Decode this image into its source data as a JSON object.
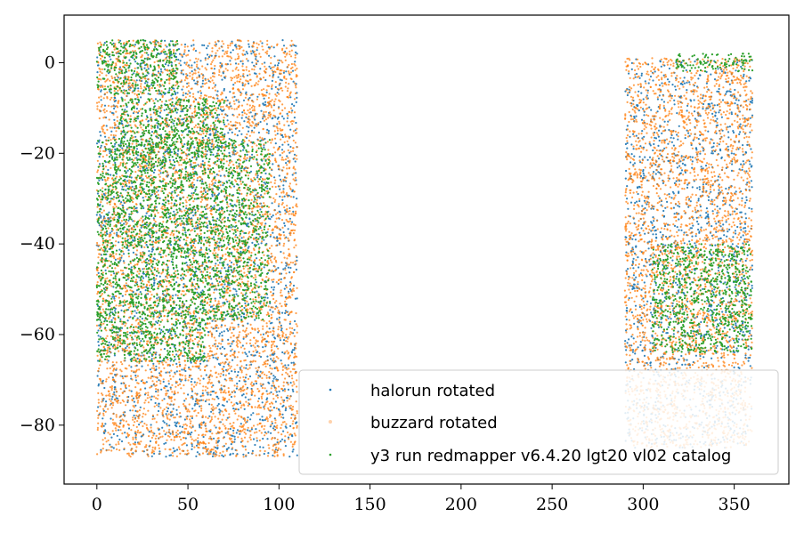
{
  "chart_data": {
    "type": "scatter",
    "title": "",
    "xlabel": "",
    "ylabel": "",
    "xlim": [
      -18,
      380
    ],
    "ylim": [
      -93,
      10.5
    ],
    "grid": false,
    "legend_position": "bottom-right",
    "x_ticks": [
      0,
      50,
      100,
      150,
      200,
      250,
      300,
      350
    ],
    "y_ticks": [
      0,
      -20,
      -40,
      -60,
      -80
    ],
    "x_tick_labels": [
      "0",
      "50",
      "100",
      "150",
      "200",
      "250",
      "300",
      "350"
    ],
    "y_tick_labels": [
      "0",
      "−20",
      "−40",
      "−60",
      "−80"
    ],
    "series": [
      {
        "name": "halorun rotated",
        "color": "#1f77b4",
        "regions": [
          {
            "x": [
              0,
              110
            ],
            "y": [
              -87,
              5
            ]
          },
          {
            "x": [
              290,
              360
            ],
            "y": [
              -85,
              1
            ]
          }
        ]
      },
      {
        "name": "buzzard rotated",
        "color": "#ff7f0e",
        "regions": [
          {
            "x": [
              0,
              110
            ],
            "y": [
              -87,
              5
            ]
          },
          {
            "x": [
              290,
              360
            ],
            "y": [
              -85,
              1
            ]
          }
        ]
      },
      {
        "name": "y3 run redmapper v6.4.20 lgt20 vl02 catalog",
        "color": "#2ca02c",
        "regions": [
          {
            "x": [
              0,
              45
            ],
            "y": [
              -7,
              5
            ]
          },
          {
            "x": [
              0,
              95
            ],
            "y": [
              -57,
              -17
            ]
          },
          {
            "x": [
              12,
              70
            ],
            "y": [
              -20,
              -8
            ]
          },
          {
            "x": [
              0,
              60
            ],
            "y": [
              -66,
              -57
            ]
          },
          {
            "x": [
              318,
              360
            ],
            "y": [
              -2,
              2
            ]
          },
          {
            "x": [
              305,
              360
            ],
            "y": [
              -64,
              -40
            ]
          }
        ]
      }
    ]
  }
}
